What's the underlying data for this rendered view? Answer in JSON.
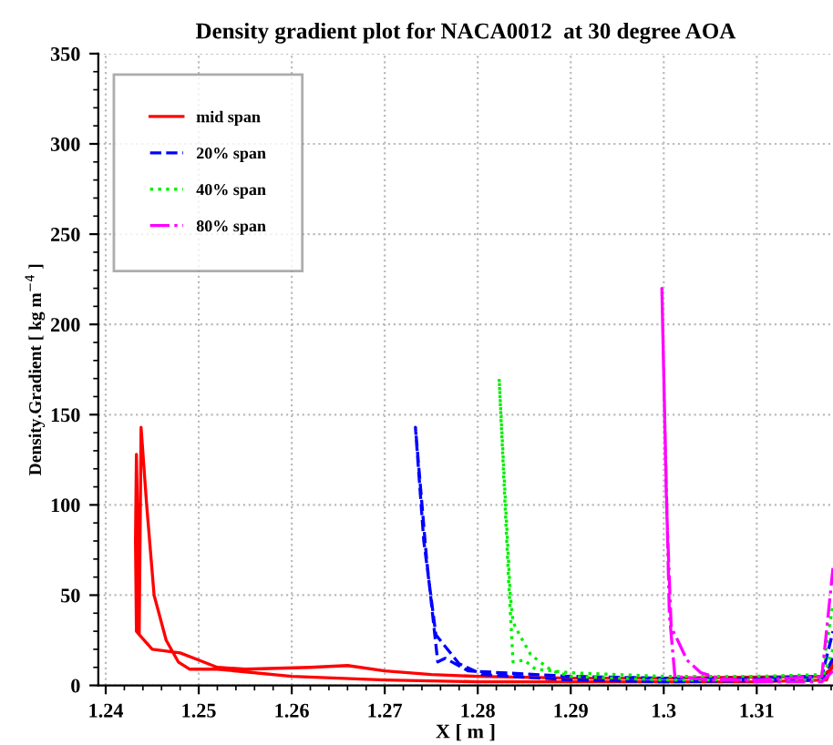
{
  "chart_data": {
    "type": "line",
    "title": "Density gradient plot for NACA0012  at 30 degree AOA",
    "xlabel": "X [ m ]",
    "ylabel": "Density.Gradient [ kg m$^{−4}$ ]",
    "xlim": [
      1.2392,
      1.3182
    ],
    "ylim": [
      0,
      350
    ],
    "xticks": [
      1.24,
      1.25,
      1.26,
      1.27,
      1.28,
      1.29,
      1.3,
      1.31
    ],
    "yticks": [
      0,
      50,
      100,
      150,
      200,
      250,
      300,
      350
    ],
    "grid": true,
    "legend": "top left",
    "marker": "none",
    "series": [
      {
        "name": "mid span",
        "color": "#ff0000",
        "line_style": "solid",
        "x": [
          1.3182,
          1.317,
          1.3,
          1.29,
          1.28,
          1.275,
          1.27,
          1.266,
          1.262,
          1.255,
          1.252,
          1.25,
          1.248,
          1.2465,
          1.245,
          1.2438,
          1.2433,
          1.2432,
          1.2433,
          1.2434,
          1.2433,
          1.2436,
          1.2438,
          1.2444,
          1.2452,
          1.2465,
          1.2478,
          1.249,
          1.252,
          1.26,
          1.27,
          1.28,
          1.29,
          1.3,
          1.31,
          1.3175,
          1.3182
        ],
        "values": [
          10,
          5,
          4,
          4,
          5,
          6,
          8,
          11,
          10,
          9,
          10,
          14,
          18,
          19,
          20,
          27,
          30,
          80,
          128,
          100,
          40,
          28,
          143,
          100,
          50,
          25,
          13,
          9,
          9,
          5,
          3,
          2,
          2,
          2,
          2,
          3,
          12
        ]
      },
      {
        "name": "20% span",
        "color": "#0000ff",
        "line_style": "dashed",
        "x": [
          1.3182,
          1.317,
          1.3,
          1.29,
          1.2805,
          1.278,
          1.2755,
          1.2742,
          1.2733,
          1.2745,
          1.2757,
          1.2765,
          1.279,
          1.29,
          1.3,
          1.31,
          1.317,
          1.3182
        ],
        "values": [
          15,
          3,
          2,
          3,
          6,
          12,
          28,
          80,
          143,
          70,
          13,
          15,
          8,
          5,
          4,
          4,
          5,
          30
        ]
      },
      {
        "name": "40% span",
        "color": "#00ee00",
        "line_style": "dotted",
        "x": [
          1.3182,
          1.317,
          1.3,
          1.29,
          1.288,
          1.2857,
          1.2845,
          1.2838,
          1.2835,
          1.2823,
          1.2833,
          1.2838,
          1.285,
          1.2862,
          1.29,
          1.3,
          1.31,
          1.317,
          1.3182
        ],
        "values": [
          20,
          3,
          3,
          5,
          8,
          17,
          28,
          35,
          50,
          170,
          60,
          13,
          14,
          9,
          7,
          5,
          5,
          6,
          45
        ]
      },
      {
        "name": "80% span",
        "color": "#ff00ff",
        "line_style": "dashdot",
        "x": [
          1.3182,
          1.317,
          1.31,
          1.306,
          1.304,
          1.3025,
          1.3015,
          1.3008,
          1.3003,
          1.2998,
          1.3001,
          1.3006,
          1.3012,
          1.305,
          1.31,
          1.317,
          1.3182
        ],
        "values": [
          8,
          2,
          2,
          4,
          7,
          14,
          25,
          32,
          100,
          220,
          150,
          40,
          5,
          3,
          3,
          5,
          65
        ]
      }
    ]
  }
}
